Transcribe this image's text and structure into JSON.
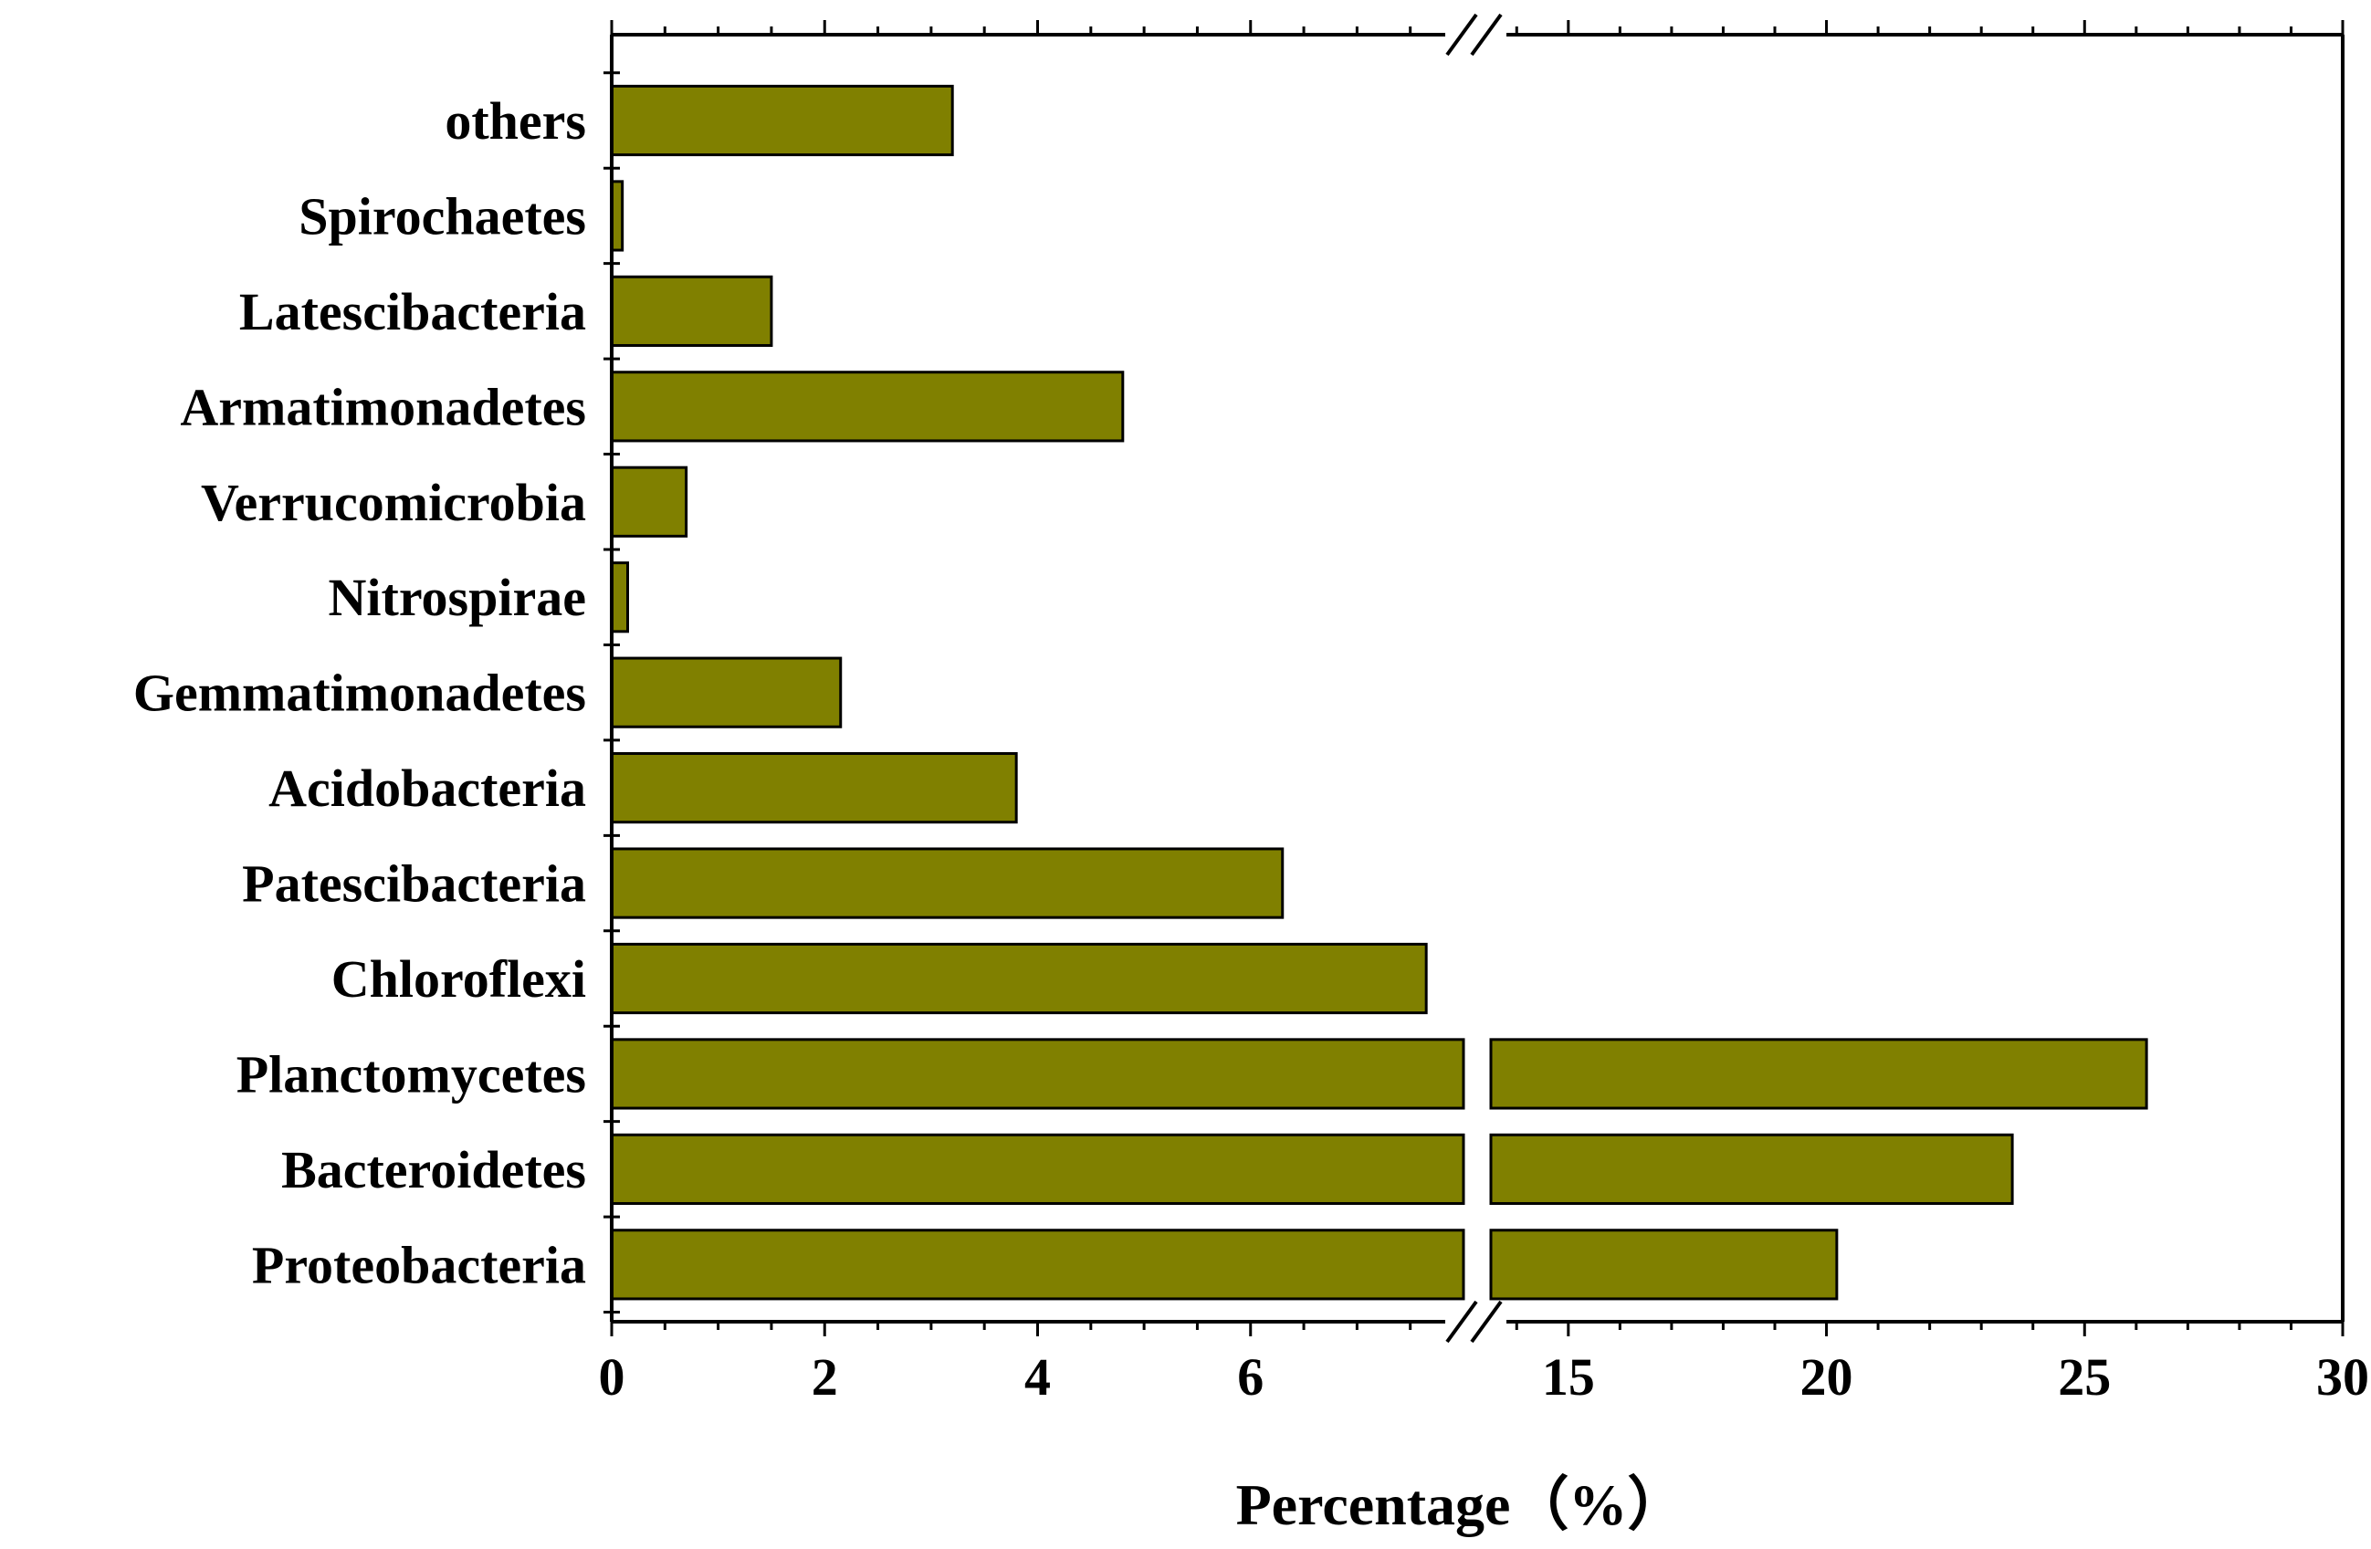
{
  "chart_data": {
    "type": "bar",
    "orientation": "horizontal",
    "title": "",
    "xlabel": "Percentage（%）",
    "ylabel": "",
    "bar_color": "#808000",
    "bar_edge_color": "#000000",
    "axis_break": {
      "from": 8,
      "to": 13.5
    },
    "xlim": [
      0,
      30
    ],
    "x_ticks": [
      {
        "value": 0,
        "label": "0"
      },
      {
        "value": 2,
        "label": "2"
      },
      {
        "value": 4,
        "label": "4"
      },
      {
        "value": 6,
        "label": "6"
      },
      {
        "value": 15,
        "label": "15"
      },
      {
        "value": 20,
        "label": "20"
      },
      {
        "value": 25,
        "label": "25"
      },
      {
        "value": 30,
        "label": "30"
      }
    ],
    "categories": [
      "others",
      "Spirochaetes",
      "Latescibacteria",
      "Armatimonadetes",
      "Verrucomicrobia",
      "Nitrospirae",
      "Gemmatimonadetes",
      "Acidobacteria",
      "Patescibacteria",
      "Chloroflexi",
      "Planctomycetes",
      "Bacteroidetes",
      "Proteobacteria"
    ],
    "values": [
      3.2,
      0.1,
      1.5,
      4.8,
      0.7,
      0.15,
      2.15,
      3.8,
      6.3,
      7.65,
      26.2,
      23.6,
      20.2
    ]
  }
}
